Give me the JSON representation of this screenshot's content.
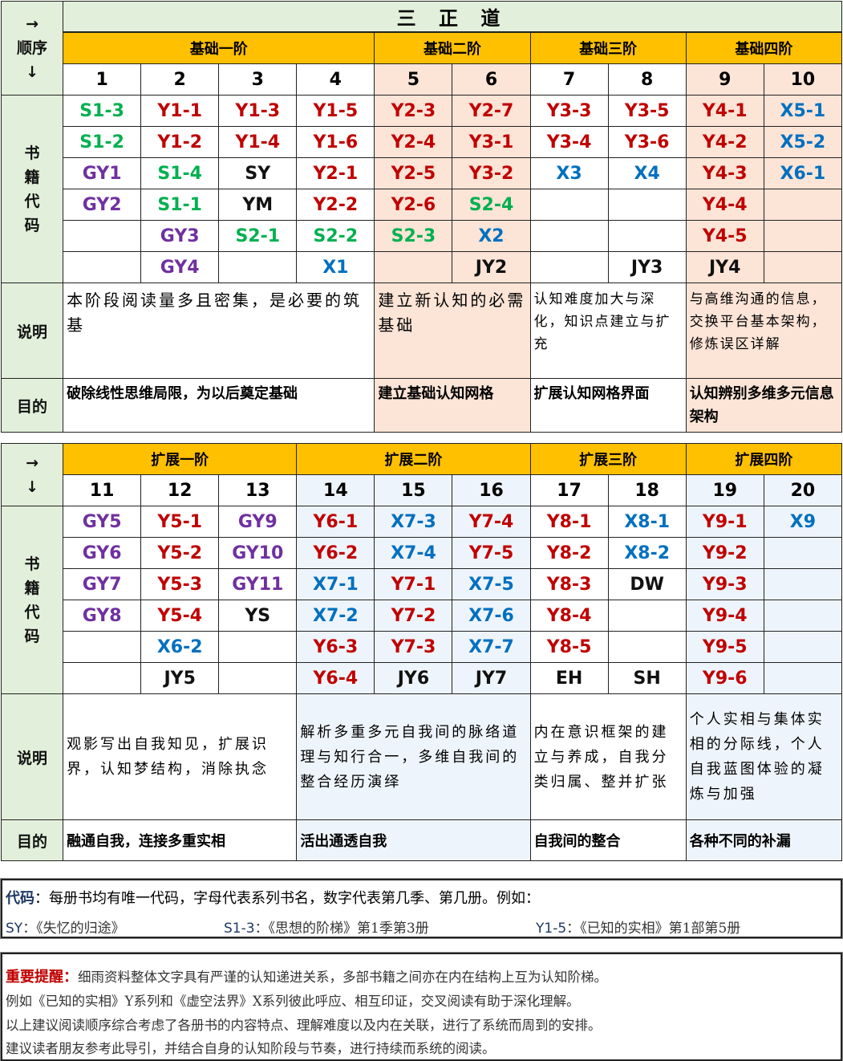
{
  "colors": {
    "S": "#00b050",
    "Y": "#c00000",
    "GY": "#7030a0",
    "X": "#0070c0",
    "other": "#111111",
    "stage": "#ffc000",
    "side": "#e2efda",
    "peach": "#fce4d6",
    "blue": "#eef4fb"
  },
  "section1": {
    "title": "三 正 道",
    "order_label": "→\n顺序\n↓",
    "codes_label": "书\n籍\n代\n码",
    "desc_label": "说明",
    "goal_label": "目的",
    "stages": [
      {
        "name": "基础一阶",
        "span": 4,
        "tint": "none",
        "desc": "本阶段阅读量多且密集，是必要的筑基",
        "goal": "破除线性思维局限，为以后奠定基础"
      },
      {
        "name": "基础二阶",
        "span": 2,
        "tint": "peach",
        "desc": "建立新认知的必需基础",
        "goal": "建立基础认知网格"
      },
      {
        "name": "基础三阶",
        "span": 2,
        "tint": "none",
        "desc": "认知难度加大与深化，知识点建立与扩充",
        "goal": "扩展认知网格界面"
      },
      {
        "name": "基础四阶",
        "span": 2,
        "tint": "peach",
        "desc": "与高维沟通的信息，交换平台基本架构，修炼误区详解",
        "goal": "认知辨别多维多元信息架构"
      }
    ],
    "numbers": [
      "1",
      "2",
      "3",
      "4",
      "5",
      "6",
      "7",
      "8",
      "9",
      "10"
    ],
    "rows": [
      [
        "S1-3",
        "Y1-1",
        "Y1-3",
        "Y1-5",
        "Y2-3",
        "Y2-7",
        "Y3-3",
        "Y3-5",
        "Y4-1",
        "X5-1"
      ],
      [
        "S1-2",
        "Y1-2",
        "Y1-4",
        "Y1-6",
        "Y2-4",
        "Y3-1",
        "Y3-4",
        "Y3-6",
        "Y4-2",
        "X5-2"
      ],
      [
        "GY1",
        "S1-4",
        "SY",
        "Y2-1",
        "Y2-5",
        "Y3-2",
        "X3",
        "X4",
        "Y4-3",
        "X6-1"
      ],
      [
        "GY2",
        "S1-1",
        "YM",
        "Y2-2",
        "Y2-6",
        "S2-4",
        "",
        "",
        "Y4-4",
        ""
      ],
      [
        "",
        "GY3",
        "S2-1",
        "S2-2",
        "S2-3",
        "X2",
        "",
        "",
        "Y4-5",
        ""
      ],
      [
        "",
        "GY4",
        "",
        "X1",
        "",
        "JY2",
        "",
        "JY3",
        "JY4",
        ""
      ]
    ]
  },
  "section2": {
    "order_label": "→\n↓",
    "codes_label": "书\n籍\n代\n码",
    "desc_label": "说明",
    "goal_label": "目的",
    "stages": [
      {
        "name": "扩展一阶",
        "span": 3,
        "tint": "none",
        "desc": "观影写出自我知见，扩展识界，认知梦结构，消除执念",
        "goal": "融通自我，连接多重实相"
      },
      {
        "name": "扩展二阶",
        "span": 3,
        "tint": "blue",
        "desc": "解析多重多元自我间的脉络道理与知行合一，多维自我间的整合经历演绎",
        "goal": "活出通透自我"
      },
      {
        "name": "扩展三阶",
        "span": 2,
        "tint": "none",
        "desc": "内在意识框架的建立与养成，自我分类归属、整并扩张",
        "goal": "自我间的整合"
      },
      {
        "name": "扩展四阶",
        "span": 2,
        "tint": "blue",
        "desc": "个人实相与集体实相的分际线，个人自我蓝图体验的凝炼与加强",
        "goal": "各种不同的补漏"
      }
    ],
    "numbers": [
      "11",
      "12",
      "13",
      "14",
      "15",
      "16",
      "17",
      "18",
      "19",
      "20"
    ],
    "rows": [
      [
        "GY5",
        "Y5-1",
        "GY9",
        "Y6-1",
        "X7-3",
        "Y7-4",
        "Y8-1",
        "X8-1",
        "Y9-1",
        "X9"
      ],
      [
        "GY6",
        "Y5-2",
        "GY10",
        "Y6-2",
        "X7-4",
        "Y7-5",
        "Y8-2",
        "X8-2",
        "Y9-2",
        ""
      ],
      [
        "GY7",
        "Y5-3",
        "GY11",
        "X7-1",
        "Y7-1",
        "X7-5",
        "Y8-3",
        "DW",
        "Y9-3",
        ""
      ],
      [
        "GY8",
        "Y5-4",
        "YS",
        "X7-2",
        "Y7-2",
        "X7-6",
        "Y8-4",
        "",
        "Y9-4",
        ""
      ],
      [
        "",
        "X6-2",
        "",
        "Y6-3",
        "Y7-3",
        "X7-7",
        "Y8-5",
        "",
        "Y9-5",
        ""
      ],
      [
        "",
        "JY5",
        "",
        "Y6-4",
        "JY6",
        "JY7",
        "EH",
        "SH",
        "Y9-6",
        ""
      ]
    ]
  },
  "note": {
    "label": "代码",
    "text": "：每册书均有唯一代码，字母代表系列书名，数字代表第几季、第几册。例如：",
    "examples": [
      {
        "code": "SY",
        "text": "：《失忆的归途》"
      },
      {
        "code": "S1-3",
        "text": "：《思想的阶梯》第1季第3册"
      },
      {
        "code": "Y1-5",
        "text": "：《已知的实相》第1部第5册"
      }
    ]
  },
  "reminder": {
    "label": "重要提醒：",
    "lines": [
      "细雨资料整体文字具有严谨的认知递进关系，多部书籍之间亦在内在结构上互为认知阶梯。",
      "例如《已知的实相》Y系列和《虚空法界》X系列彼此呼应、相互印证，交叉阅读有助于深化理解。",
      "以上建议阅读顺序综合考虑了各册书的内容特点、理解难度以及内在关联，进行了系统而周到的安排。",
      "建议读者朋友参考此导引，并结合自身的认知阶段与节奏，进行持续而系统的阅读。"
    ]
  }
}
